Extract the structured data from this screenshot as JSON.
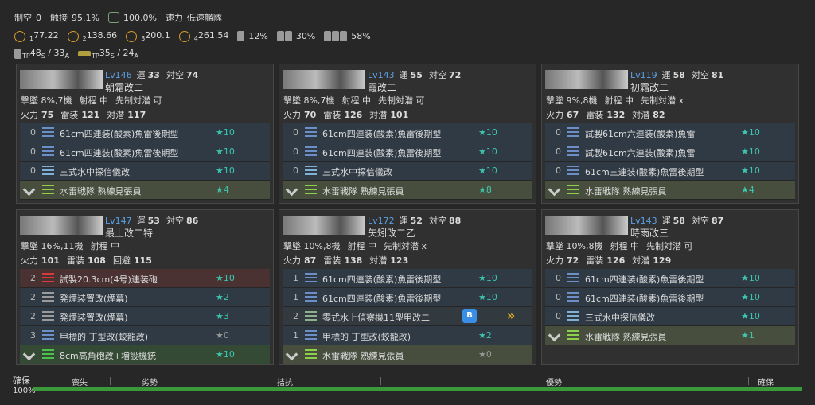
{
  "header": {
    "row1": {
      "air_label": "制空",
      "air": "0",
      "contact_label": "触接",
      "contact": "95.1%",
      "recon": "100.0%",
      "speed_label": "速力",
      "speed": "低速艦隊"
    },
    "row2": {
      "air_states": [
        {
          "sub": "1",
          "value": "77.22"
        },
        {
          "sub": "2",
          "value": "138.66"
        },
        {
          "sub": "3",
          "value": "200.1"
        },
        {
          "sub": "4",
          "value": "261.54"
        }
      ],
      "rates": [
        "12%",
        "30%",
        "58%"
      ]
    },
    "row3": [
      {
        "label": "TP",
        "s": "48",
        "s_sub": "S",
        "a": " / 33",
        "a_sub": "A"
      },
      {
        "label": "TP",
        "s": "35",
        "s_sub": "S",
        "a": " / 24",
        "a_sub": "A"
      }
    ]
  },
  "ships": [
    {
      "level": "Lv146",
      "luck_label": "運",
      "luck": "33",
      "aa_label": "対空",
      "aa": "74",
      "name": "朝霜改二",
      "stats2": [
        "撃墜 8%,7機",
        "射程 中",
        "先制対潜 可"
      ],
      "stats3": [
        [
          "火力",
          "75"
        ],
        [
          "雷装",
          "121"
        ],
        [
          "対潜",
          "117"
        ]
      ],
      "equips": [
        {
          "slots": "0",
          "name": "61cm四連装(酸素)魚雷後期型",
          "stars": "★10",
          "icon_color": "#6d8fc8"
        },
        {
          "slots": "0",
          "name": "61cm四連装(酸素)魚雷後期型",
          "stars": "★10",
          "icon_color": "#6d8fc8"
        },
        {
          "slots": "0",
          "name": "三式水中探信儀改",
          "stars": "★10",
          "icon_color": "#7fb2d6"
        },
        {
          "name": "水雷戦隊 熟練見張員",
          "stars": "★4",
          "icon_color": "#8dd14a",
          "row_color": "#474e3e"
        }
      ]
    },
    {
      "level": "Lv143",
      "luck_label": "運",
      "luck": "55",
      "aa_label": "対空",
      "aa": "72",
      "name": "霞改二",
      "stats2": [
        "撃墜 8%,7機",
        "射程 中",
        "先制対潜 可"
      ],
      "stats3": [
        [
          "火力",
          "70"
        ],
        [
          "雷装",
          "126"
        ],
        [
          "対潜",
          "101"
        ]
      ],
      "equips": [
        {
          "slots": "0",
          "name": "61cm四連装(酸素)魚雷後期型",
          "stars": "★10",
          "icon_color": "#6d8fc8"
        },
        {
          "slots": "0",
          "name": "61cm四連装(酸素)魚雷後期型",
          "stars": "★10",
          "icon_color": "#6d8fc8"
        },
        {
          "slots": "0",
          "name": "三式水中探信儀改",
          "stars": "★10",
          "icon_color": "#7fb2d6"
        },
        {
          "name": "水雷戦隊 熟練見張員",
          "stars": "★8",
          "icon_color": "#8dd14a",
          "row_color": "#474e3e"
        }
      ]
    },
    {
      "level": "Lv119",
      "luck_label": "運",
      "luck": "58",
      "aa_label": "対空",
      "aa": "81",
      "name": "初霜改二",
      "stats2": [
        "撃墜 9%,8機",
        "射程 中",
        "先制対潜 x"
      ],
      "stats3": [
        [
          "火力",
          "67"
        ],
        [
          "雷装",
          "132"
        ],
        [
          "対潜",
          "82"
        ]
      ],
      "equips": [
        {
          "slots": "0",
          "name": "試製61cm六連装(酸素)魚雷",
          "stars": "★10",
          "icon_color": "#6d8fc8"
        },
        {
          "slots": "0",
          "name": "試製61cm六連装(酸素)魚雷",
          "stars": "★10",
          "icon_color": "#6d8fc8"
        },
        {
          "slots": "0",
          "name": "61cm三連装(酸素)魚雷後期型",
          "stars": "★10",
          "icon_color": "#6d8fc8"
        },
        {
          "name": "水雷戦隊 熟練見張員",
          "stars": "★4",
          "icon_color": "#8dd14a",
          "row_color": "#474e3e"
        }
      ]
    },
    {
      "level": "Lv147",
      "luck_label": "運",
      "luck": "53",
      "aa_label": "対空",
      "aa": "86",
      "name": "最上改二特",
      "stats2": [
        "撃墜 16%,11機",
        "射程 中"
      ],
      "stats3": [
        [
          "火力",
          "101"
        ],
        [
          "雷装",
          "108"
        ],
        [
          "回避",
          "115"
        ]
      ],
      "equips": [
        {
          "slots": "2",
          "name": "試製20.3cm(4号)連装砲",
          "stars": "★10",
          "icon_color": "#d23c3c",
          "row_color": "#4a3232"
        },
        {
          "slots": "2",
          "name": "発煙装置改(煙幕)",
          "stars": "★2",
          "icon_color": "#9a9a9a"
        },
        {
          "slots": "2",
          "name": "発煙装置改(煙幕)",
          "stars": "★3",
          "icon_color": "#9a9a9a"
        },
        {
          "slots": "3",
          "name": "甲標的 丁型改(蛟龍改)",
          "stars": "★0",
          "icon_color": "#6d8fc8",
          "star_color": "#9a9a9a"
        },
        {
          "name": "8cm高角砲改+増設機銃",
          "stars": "★10",
          "icon_color": "#4cc24c",
          "row_color": "#344a34"
        }
      ]
    },
    {
      "level": "Lv172",
      "luck_label": "運",
      "luck": "52",
      "aa_label": "対空",
      "aa": "88",
      "name": "矢矧改二乙",
      "stats2": [
        "撃墜 10%,8機",
        "射程 中",
        "先制対潜 x"
      ],
      "stats3": [
        [
          "火力",
          "87"
        ],
        [
          "雷装",
          "138"
        ],
        [
          "対潜",
          "123"
        ]
      ],
      "equips": [
        {
          "slots": "1",
          "name": "61cm四連装(酸素)魚雷後期型",
          "stars": "★10",
          "icon_color": "#6d8fc8"
        },
        {
          "slots": "1",
          "name": "61cm四連装(酸素)魚雷後期型",
          "stars": "★10",
          "icon_color": "#6d8fc8"
        },
        {
          "slots": "2",
          "name": "零式水上偵察機11型甲改二",
          "badge": "B",
          "icon_color": "#8fb08f",
          "row_color": "#333a3f"
        },
        {
          "slots": "1",
          "name": "甲標的 丁型改(蛟龍改)",
          "stars": "★2",
          "icon_color": "#6d8fc8"
        },
        {
          "name": "水雷戦隊 熟練見張員",
          "stars": "★0",
          "icon_color": "#8dd14a",
          "row_color": "#474e3e",
          "star_color": "#9a9a9a"
        }
      ]
    },
    {
      "level": "Lv143",
      "luck_label": "運",
      "luck": "58",
      "aa_label": "対空",
      "aa": "87",
      "name": "時雨改三",
      "stats2": [
        "撃墜 10%,8機",
        "射程 中",
        "先制対潜 可"
      ],
      "stats3": [
        [
          "火力",
          "72"
        ],
        [
          "雷装",
          "126"
        ],
        [
          "対潜",
          "129"
        ]
      ],
      "equips": [
        {
          "slots": "0",
          "name": "61cm四連装(酸素)魚雷後期型",
          "stars": "★10",
          "icon_color": "#6d8fc8"
        },
        {
          "slots": "0",
          "name": "61cm四連装(酸素)魚雷後期型",
          "stars": "★10",
          "icon_color": "#6d8fc8"
        },
        {
          "slots": "0",
          "name": "三式水中探信儀改",
          "stars": "★10",
          "icon_color": "#7fb2d6"
        },
        {
          "name": "水雷戦隊 熟練見張員",
          "stars": "★1",
          "icon_color": "#8dd14a",
          "row_color": "#474e3e"
        }
      ]
    }
  ],
  "air_bar": {
    "state": "確保",
    "percent": "100%",
    "scale": [
      "喪失",
      "劣勢",
      "拮抗",
      "優勢",
      "確保"
    ],
    "color": "#3a9a3a"
  }
}
